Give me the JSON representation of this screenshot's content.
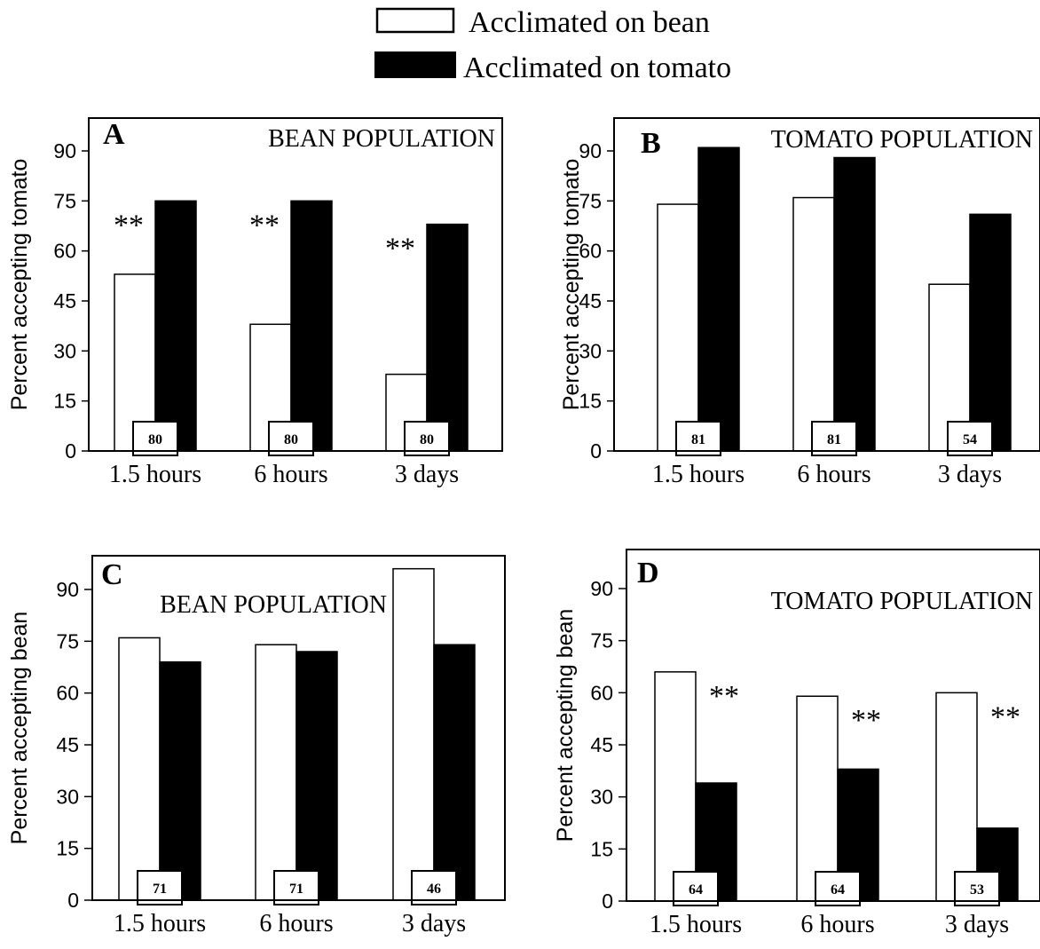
{
  "legend": {
    "items": [
      {
        "label": "Acclimated on bean",
        "fill": "#ffffff"
      },
      {
        "label": "Acclimated on tomato",
        "fill": "#000000"
      }
    ]
  },
  "chart_data": [
    {
      "type": "bar",
      "panel": "A",
      "title": "BEAN POPULATION",
      "ylabel": "Percent accepting tomato",
      "ylim": [
        0,
        90
      ],
      "yticks": [
        0,
        15,
        30,
        45,
        60,
        75,
        90
      ],
      "categories": [
        "1.5 hours",
        "6 hours",
        "3 days"
      ],
      "series": [
        {
          "name": "Acclimated on bean",
          "values": [
            53,
            38,
            23
          ]
        },
        {
          "name": "Acclimated on tomato",
          "values": [
            75,
            75,
            68
          ]
        }
      ],
      "sample_sizes": [
        "80",
        "80",
        "80"
      ],
      "significance": [
        "**",
        "**",
        "**"
      ],
      "significance_position": "before"
    },
    {
      "type": "bar",
      "panel": "B",
      "title": "TOMATO POPULATION",
      "ylabel": "Percent accepting tomato",
      "ylim": [
        0,
        90
      ],
      "yticks": [
        0,
        15,
        30,
        45,
        60,
        75,
        90
      ],
      "categories": [
        "1.5 hours",
        "6 hours",
        "3 days"
      ],
      "series": [
        {
          "name": "Acclimated on bean",
          "values": [
            74,
            76,
            50
          ]
        },
        {
          "name": "Acclimated on tomato",
          "values": [
            91,
            88,
            71
          ]
        }
      ],
      "sample_sizes": [
        "81",
        "81",
        "54"
      ],
      "significance": [
        "",
        "",
        ""
      ],
      "significance_position": "before"
    },
    {
      "type": "bar",
      "panel": "C",
      "title": "BEAN POPULATION",
      "ylabel": "Percent accepting bean",
      "ylim": [
        0,
        90
      ],
      "yticks": [
        0,
        15,
        30,
        45,
        60,
        75,
        90
      ],
      "categories": [
        "1.5 hours",
        "6 hours",
        "3 days"
      ],
      "series": [
        {
          "name": "Acclimated on bean",
          "values": [
            76,
            74,
            96
          ]
        },
        {
          "name": "Acclimated on tomato",
          "values": [
            69,
            72,
            74
          ]
        }
      ],
      "sample_sizes": [
        "71",
        "71",
        "46"
      ],
      "significance": [
        "",
        "",
        ""
      ],
      "significance_position": "before"
    },
    {
      "type": "bar",
      "panel": "D",
      "title": "TOMATO POPULATION",
      "ylabel": "Percent accepting bean",
      "ylim": [
        0,
        90
      ],
      "yticks": [
        0,
        15,
        30,
        45,
        60,
        75,
        90
      ],
      "categories": [
        "1.5 hours",
        "6 hours",
        "3 days"
      ],
      "series": [
        {
          "name": "Acclimated on bean",
          "values": [
            66,
            59,
            60
          ]
        },
        {
          "name": "Acclimated on tomato",
          "values": [
            34,
            38,
            21
          ]
        }
      ],
      "sample_sizes": [
        "64",
        "64",
        "53"
      ],
      "significance": [
        "**",
        "**",
        "**"
      ],
      "significance_position": "after"
    }
  ]
}
